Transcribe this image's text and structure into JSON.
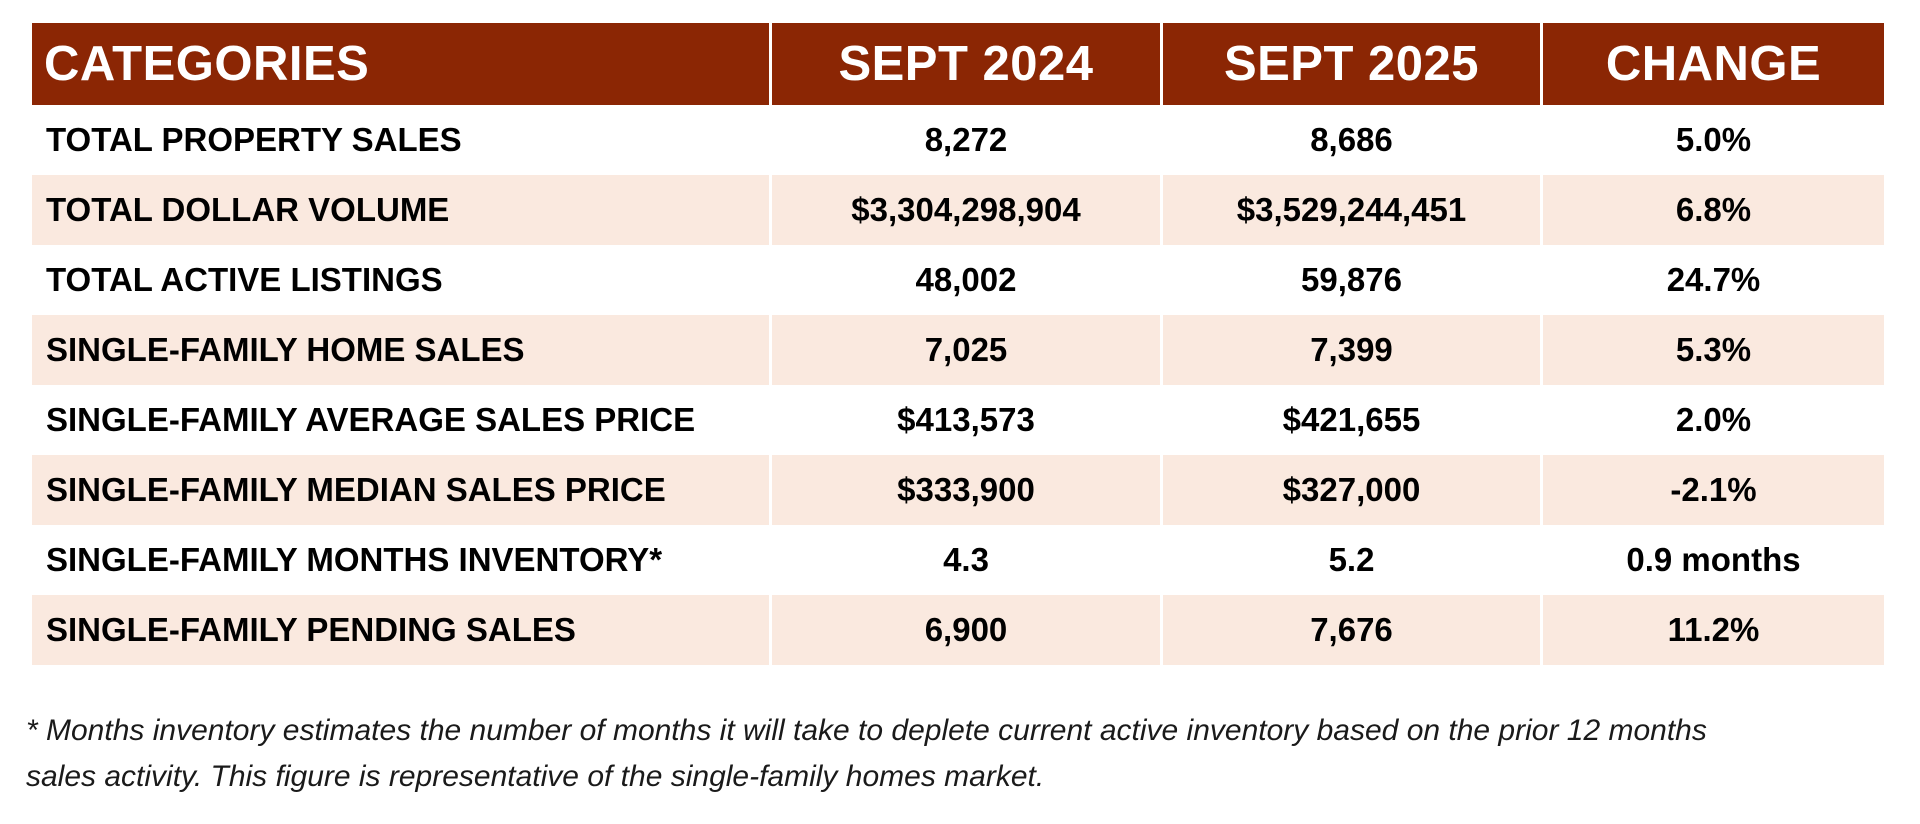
{
  "table": {
    "headers": [
      "CATEGORIES",
      "SEPT 2024",
      "SEPT 2025",
      "CHANGE"
    ],
    "rows": [
      [
        "TOTAL PROPERTY SALES",
        "8,272",
        "8,686",
        "5.0%"
      ],
      [
        "TOTAL DOLLAR VOLUME",
        "$3,304,298,904",
        "$3,529,244,451",
        "6.8%"
      ],
      [
        "TOTAL ACTIVE LISTINGS",
        "48,002",
        "59,876",
        "24.7%"
      ],
      [
        "SINGLE-FAMILY HOME SALES",
        "7,025",
        "7,399",
        "5.3%"
      ],
      [
        "SINGLE-FAMILY AVERAGE SALES PRICE",
        "$413,573",
        "$421,655",
        "2.0%"
      ],
      [
        "SINGLE-FAMILY MEDIAN SALES PRICE",
        "$333,900",
        "$327,000",
        "-2.1%"
      ],
      [
        "SINGLE-FAMILY MONTHS INVENTORY*",
        "4.3",
        "5.2",
        "0.9 months"
      ],
      [
        "SINGLE-FAMILY PENDING SALES",
        "6,900",
        "7,676",
        "11.2%"
      ]
    ]
  },
  "footnote": {
    "line1": "* Months inventory estimates the number of months it will take to deplete current active inventory based on the prior 12 months",
    "line2": "sales activity. This figure is representative of the single-family homes market."
  },
  "colors": {
    "header_bg": "#8b2604",
    "header_text": "#ffffff",
    "stripe_bg": "#fae9df"
  }
}
